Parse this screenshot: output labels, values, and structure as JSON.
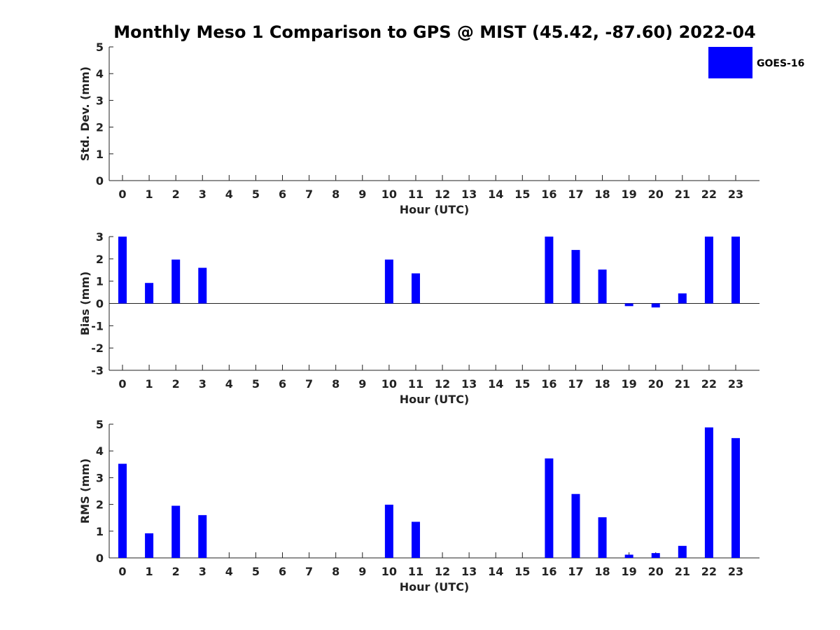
{
  "title": "Monthly Meso 1 Comparison to GPS @ MIST (45.42, -87.60) 2022-04",
  "legend": {
    "label": "GOES-16",
    "color": "#0000ff"
  },
  "chart_data": [
    {
      "type": "bar",
      "panel": "std_dev",
      "ylabel": "Std. Dev. (mm)",
      "xlabel": "Hour (UTC)",
      "ylim": [
        0,
        5
      ],
      "yticks": [
        "0",
        "1",
        "2",
        "3",
        "4",
        "5"
      ],
      "categories": [
        "0",
        "1",
        "2",
        "3",
        "4",
        "5",
        "6",
        "7",
        "8",
        "9",
        "10",
        "11",
        "12",
        "13",
        "14",
        "15",
        "16",
        "17",
        "18",
        "19",
        "20",
        "21",
        "22",
        "23"
      ],
      "series": [
        {
          "name": "GOES-16",
          "values": [
            null,
            null,
            null,
            null,
            null,
            null,
            null,
            null,
            null,
            null,
            null,
            null,
            null,
            null,
            null,
            null,
            null,
            null,
            null,
            null,
            null,
            null,
            null,
            null
          ]
        }
      ]
    },
    {
      "type": "bar",
      "panel": "bias",
      "ylabel": "Bias (mm)",
      "xlabel": "Hour (UTC)",
      "ylim": [
        -3,
        3
      ],
      "yticks": [
        "-3",
        "-2",
        "-1",
        "0",
        "1",
        "2",
        "3"
      ],
      "categories": [
        "0",
        "1",
        "2",
        "3",
        "4",
        "5",
        "6",
        "7",
        "8",
        "9",
        "10",
        "11",
        "12",
        "13",
        "14",
        "15",
        "16",
        "17",
        "18",
        "19",
        "20",
        "21",
        "22",
        "23"
      ],
      "series": [
        {
          "name": "GOES-16",
          "values": [
            3.0,
            0.92,
            1.97,
            1.6,
            null,
            null,
            null,
            null,
            null,
            null,
            1.97,
            1.35,
            null,
            null,
            null,
            null,
            3.0,
            2.4,
            1.52,
            -0.12,
            -0.18,
            0.45,
            3.0,
            3.0
          ]
        }
      ]
    },
    {
      "type": "bar",
      "panel": "rms",
      "ylabel": "RMS (mm)",
      "xlabel": "Hour (UTC)",
      "ylim": [
        0,
        5
      ],
      "yticks": [
        "0",
        "1",
        "2",
        "3",
        "4",
        "5"
      ],
      "categories": [
        "0",
        "1",
        "2",
        "3",
        "4",
        "5",
        "6",
        "7",
        "8",
        "9",
        "10",
        "11",
        "12",
        "13",
        "14",
        "15",
        "16",
        "17",
        "18",
        "19",
        "20",
        "21",
        "22",
        "23"
      ],
      "series": [
        {
          "name": "GOES-16",
          "values": [
            3.52,
            0.92,
            1.95,
            1.6,
            null,
            null,
            null,
            null,
            null,
            null,
            1.99,
            1.35,
            null,
            null,
            null,
            null,
            3.72,
            2.39,
            1.52,
            0.12,
            0.18,
            0.45,
            4.88,
            4.48
          ]
        }
      ]
    }
  ]
}
